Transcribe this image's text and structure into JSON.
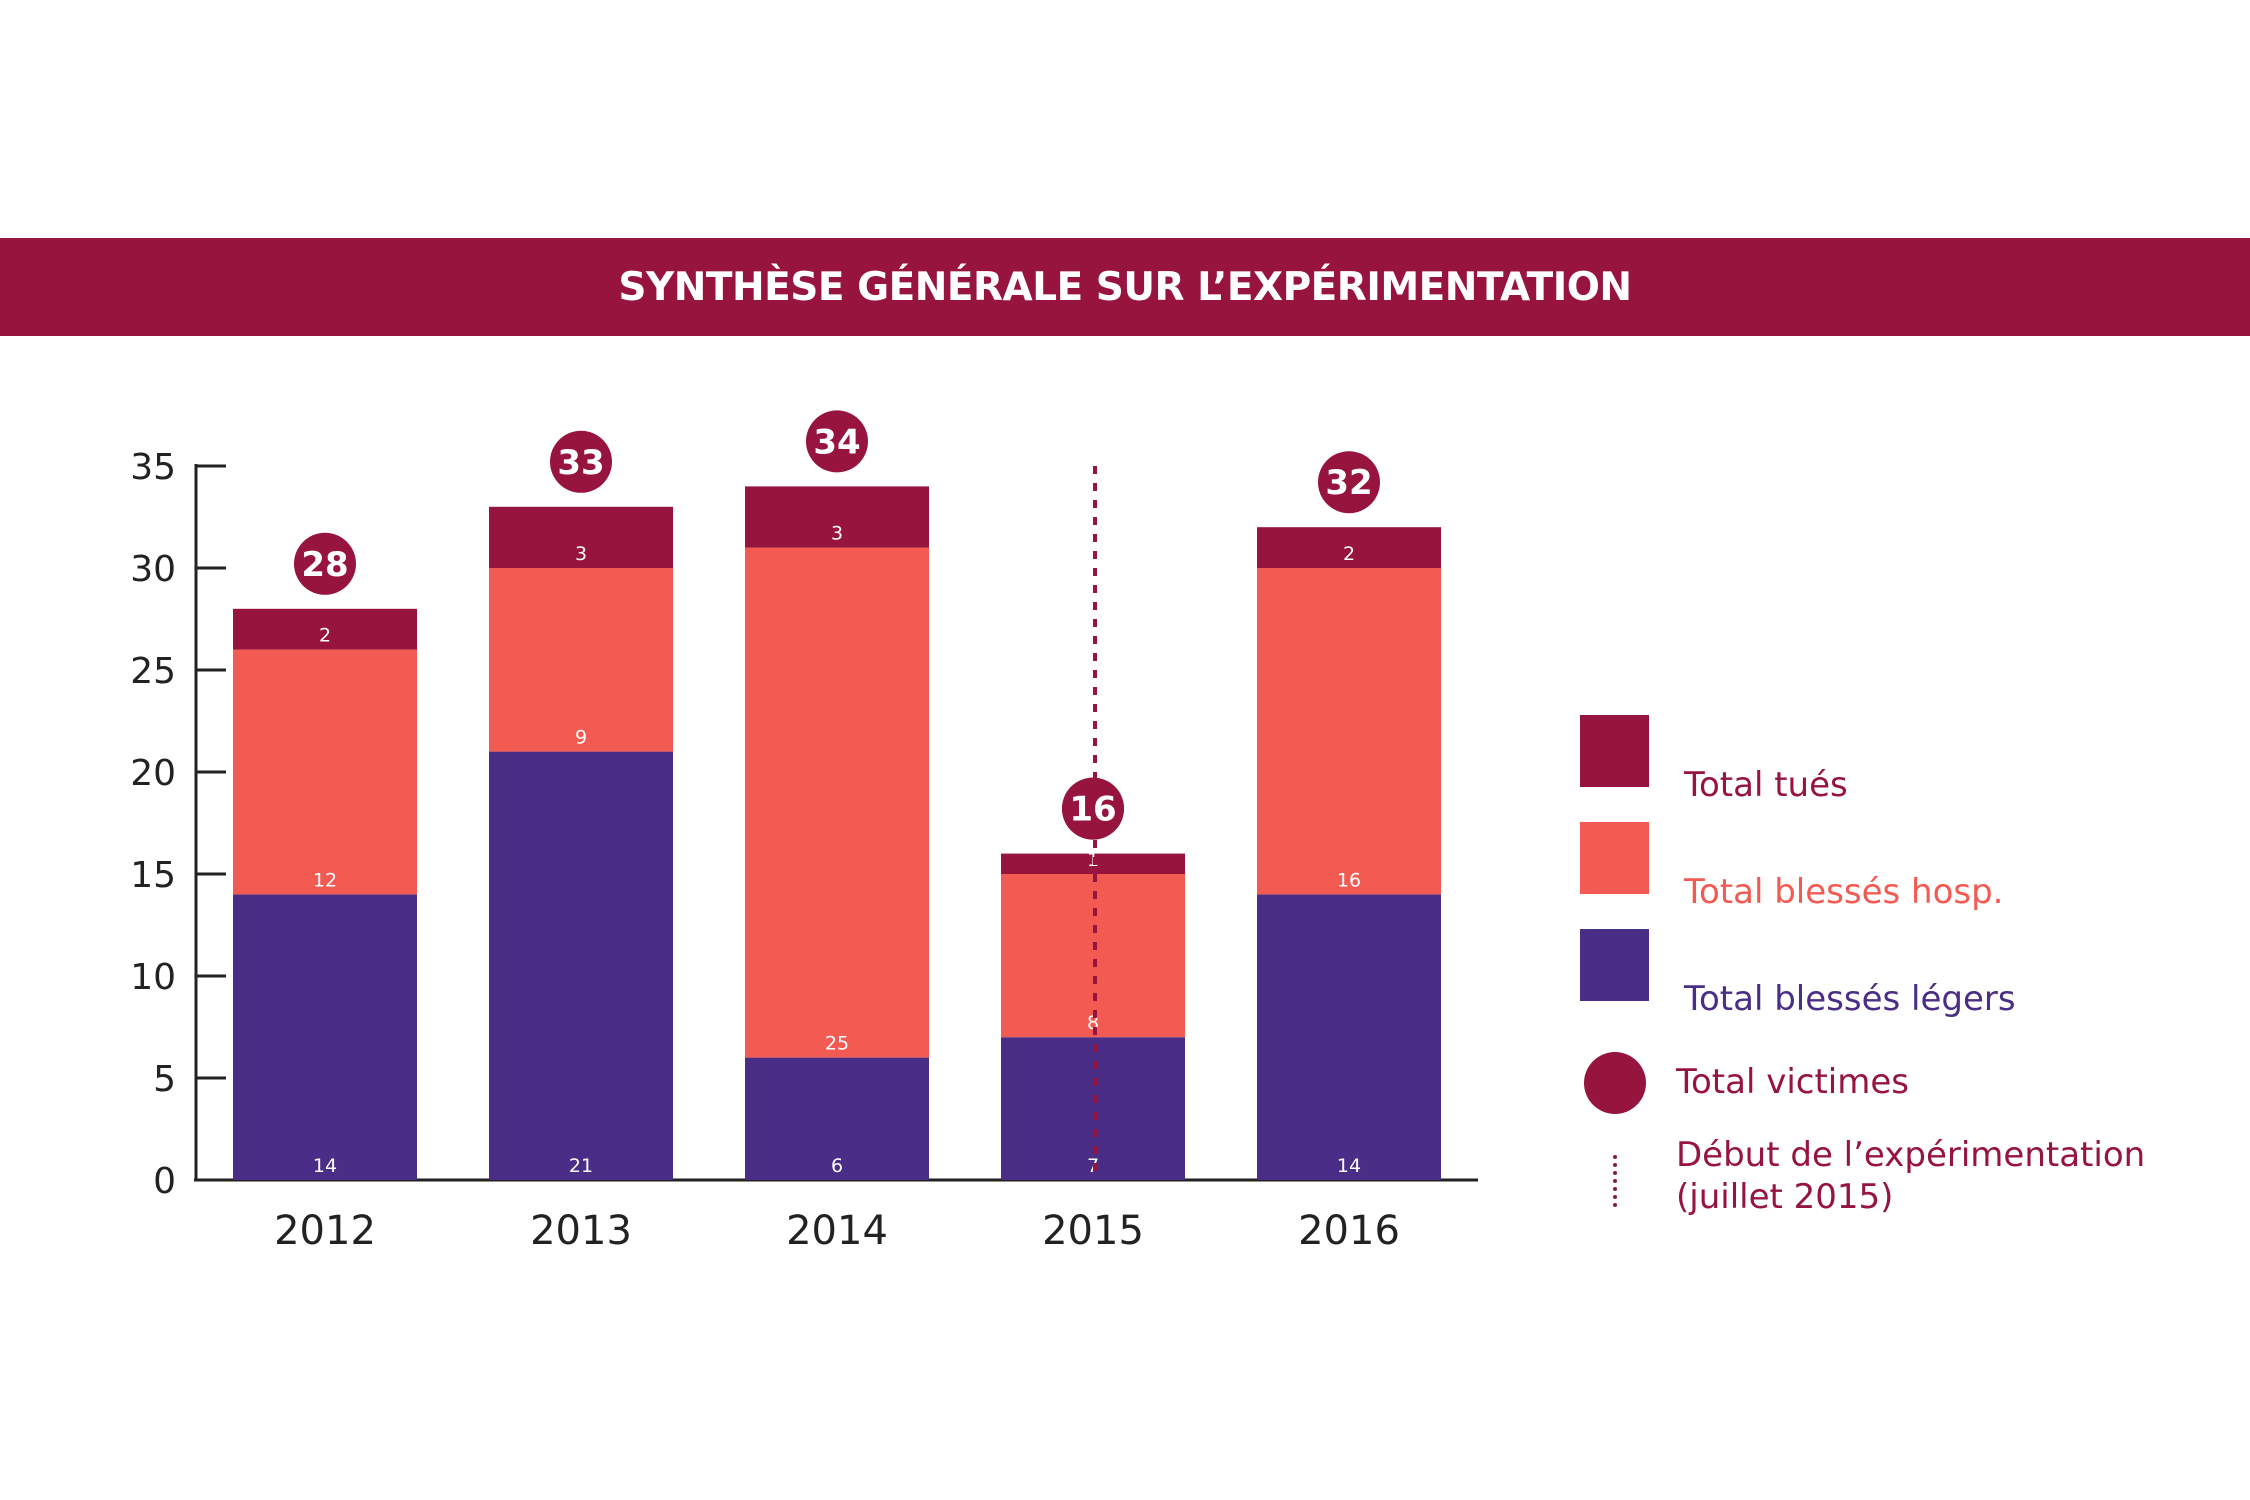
{
  "header": {
    "title": "SYNTHÈSE GÉNÉRALE SUR L’EXPÉRIMENTATION"
  },
  "colors": {
    "tues": "#96143e",
    "hosp": "#f25a52",
    "legers": "#4a2d86",
    "banner": "#96143e",
    "axis": "#222222"
  },
  "legend": {
    "tues": "Total tués",
    "hosp": "Total blessés hosp.",
    "legers": "Total blessés légers",
    "victimes": "Total victimes",
    "experimentation_line1": "Début de l’expérimentation",
    "experimentation_line2": "(juillet 2015)"
  },
  "chart_data": {
    "type": "bar",
    "stacked": true,
    "categories": [
      "2012",
      "2013",
      "2014",
      "2015",
      "2016"
    ],
    "series": [
      {
        "name": "Total blessés légers",
        "color": "#4a2d86",
        "values": [
          14,
          21,
          6,
          7,
          14
        ]
      },
      {
        "name": "Total blessés hosp.",
        "color": "#f25a52",
        "values": [
          12,
          9,
          25,
          8,
          16
        ]
      },
      {
        "name": "Total tués",
        "color": "#96143e",
        "values": [
          2,
          3,
          3,
          1,
          2
        ]
      }
    ],
    "totals": [
      28,
      33,
      34,
      16,
      32
    ],
    "totals_name": "Total victimes",
    "ylim": [
      0,
      35
    ],
    "yticks": [
      "0",
      "5",
      "10",
      "15",
      "20",
      "25",
      "30",
      "35"
    ],
    "grid": false,
    "legend_position": "right",
    "annotation": {
      "category": "2015",
      "label": "Début de l’expérimentation (juillet 2015)",
      "style": "dotted vertical line"
    }
  }
}
